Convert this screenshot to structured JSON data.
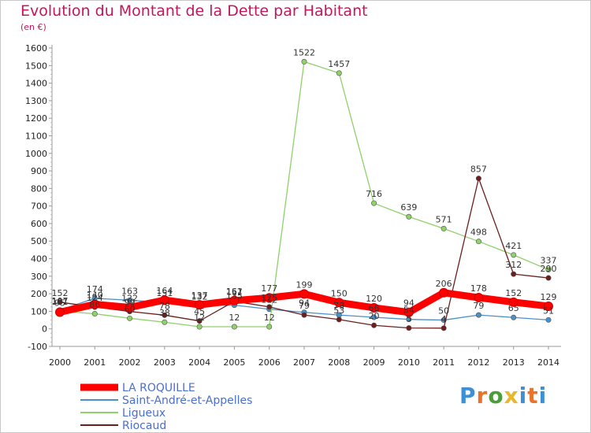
{
  "page": {
    "title": "Evolution du Montant de la Dette par Habitant",
    "unit": "(en €)",
    "logo": "Proxiti"
  },
  "chart_data": {
    "type": "line",
    "x": [
      "2000",
      "2001",
      "2002",
      "2003",
      "2004",
      "2005",
      "2006",
      "2007",
      "2008",
      "2009",
      "2010",
      "2011",
      "2012",
      "2013",
      "2014"
    ],
    "ylim": [
      -100,
      1600
    ],
    "yticks": [
      -100,
      0,
      100,
      200,
      300,
      400,
      500,
      600,
      700,
      800,
      900,
      1000,
      1100,
      1200,
      1300,
      1400,
      1500,
      1600
    ],
    "grid": false,
    "legend_position": "bottom-left",
    "series": [
      {
        "name": "LA ROQUILLE",
        "color": "#ff0000",
        "emphasis": true,
        "values": [
          95,
          140,
          122,
          164,
          137,
          161,
          177,
          199,
          150,
          120,
          94,
          206,
          178,
          152,
          129
        ],
        "labels": [
          "95",
          "140",
          "122",
          "164",
          "137",
          "161",
          "177",
          "199",
          "150",
          "120",
          "94",
          "206",
          "178",
          "152",
          "129"
        ]
      },
      {
        "name": "Saint-André-et-Appelles",
        "color": "#4a90c8",
        "emphasis": false,
        "values": [
          107,
          174,
          163,
          151,
          132,
          135,
          112,
          94,
          79,
          66,
          54,
          50,
          79,
          65,
          51
        ],
        "labels": [
          "107",
          "174",
          "163",
          "151",
          "132",
          "135",
          "112",
          "94",
          "79",
          "66",
          "54",
          "50",
          "79",
          "65",
          "51"
        ]
      },
      {
        "name": "Ligueux",
        "color": "#8fd16a",
        "emphasis": false,
        "values": [
          101,
          86,
          60,
          38,
          12,
          12,
          12,
          1522,
          1457,
          716,
          639,
          571,
          498,
          421,
          337
        ],
        "labels": [
          "101",
          "86",
          "60",
          "38",
          "12",
          "12",
          "12",
          "1522",
          "1457",
          "716",
          "639",
          "571",
          "498",
          "421",
          "337"
        ]
      },
      {
        "name": "Riocaud",
        "color": "#6b1e1e",
        "emphasis": false,
        "values": [
          152,
          124,
          99,
          78,
          45,
          157,
          125,
          79,
          53,
          20,
          5,
          4,
          857,
          312,
          290
        ],
        "labels": [
          "152",
          "124",
          "99",
          "78",
          "45",
          "157",
          "125",
          "79",
          "53",
          "20",
          "5",
          "4",
          "857",
          "312",
          "290"
        ]
      }
    ]
  }
}
